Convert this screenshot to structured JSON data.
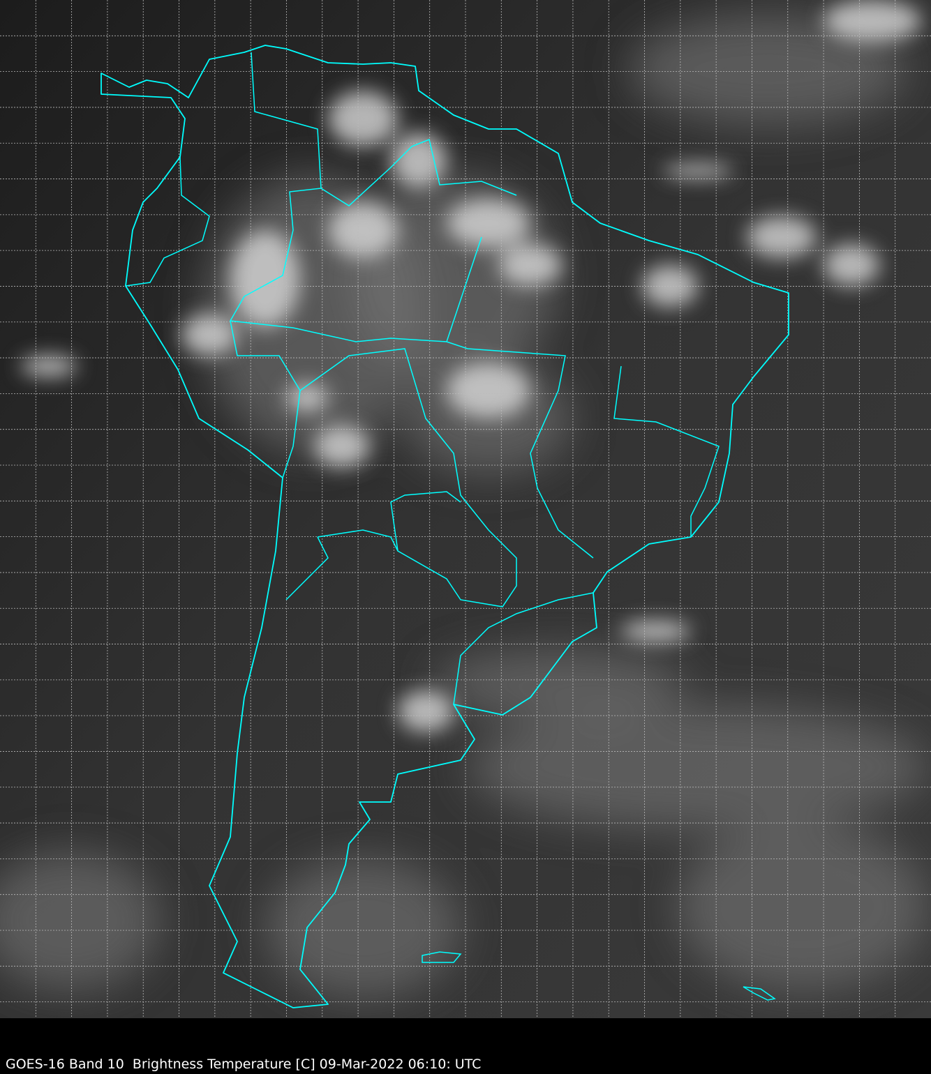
{
  "caption": "GOES-16 Band 10  Brightness Temperature [C] 09-Mar-2022 06:10: UTC",
  "map": {
    "product": "GOES-16 Band 10",
    "variable": "Brightness Temperature [C]",
    "region": "South America",
    "colors": {
      "coastline": "#00ffff",
      "grid": "#cccccc",
      "background": "#2a2a2a",
      "cloud": "#e8e8e8"
    },
    "gridlines": true
  }
}
